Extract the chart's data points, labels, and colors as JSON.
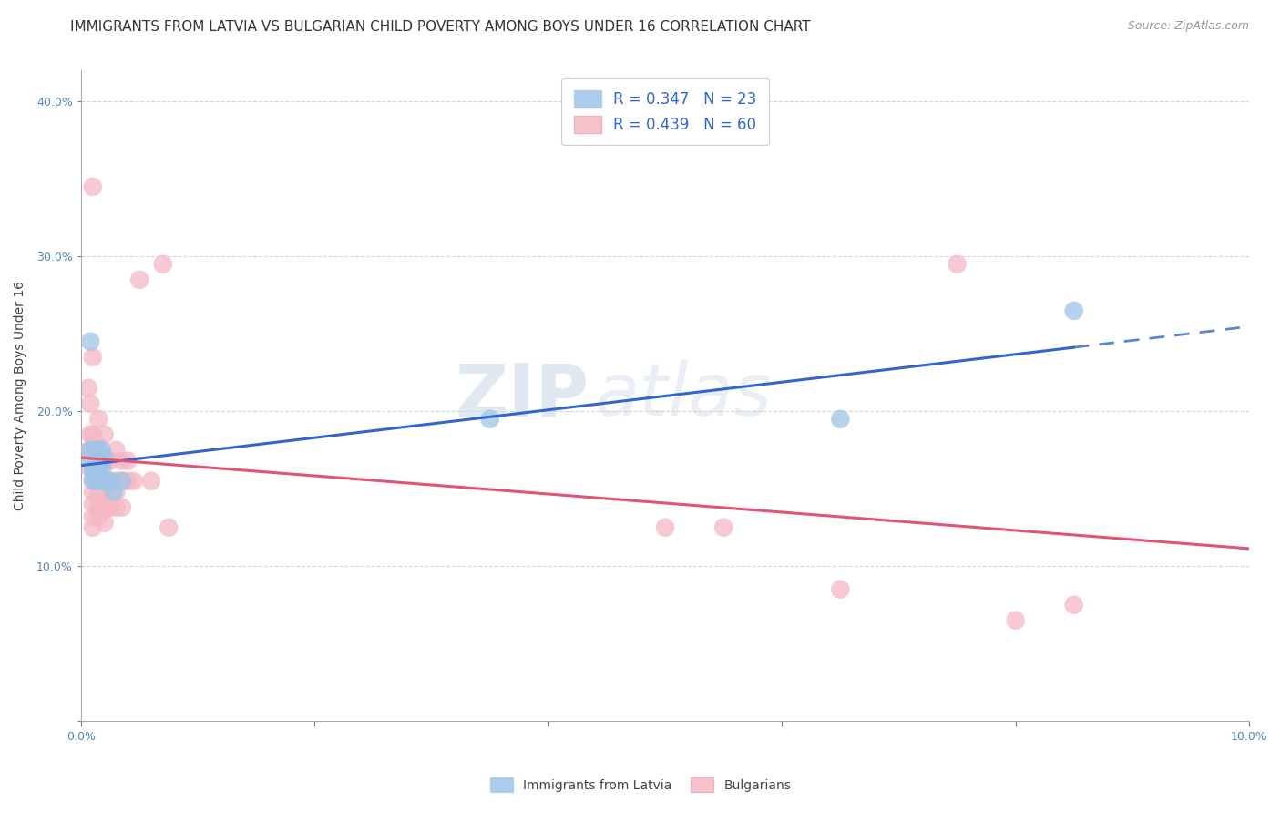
{
  "title": "IMMIGRANTS FROM LATVIA VS BULGARIAN CHILD POVERTY AMONG BOYS UNDER 16 CORRELATION CHART",
  "source": "Source: ZipAtlas.com",
  "ylabel": "Child Poverty Among Boys Under 16",
  "xlim": [
    0.0,
    0.1
  ],
  "ylim": [
    0.0,
    0.42
  ],
  "xticks": [
    0.0,
    0.02,
    0.04,
    0.06,
    0.08,
    0.1
  ],
  "yticks": [
    0.0,
    0.1,
    0.2,
    0.3,
    0.4
  ],
  "latvia_color": "#a0c4e8",
  "bulgaria_color": "#f5b8c4",
  "latvia_line_color": "#3366cc",
  "bulgaria_line_color": "#e05575",
  "latvia_R": 0.347,
  "latvia_N": 23,
  "bulgaria_R": 0.439,
  "bulgaria_N": 60,
  "background_color": "#ffffff",
  "grid_color": "#cccccc",
  "title_fontsize": 11,
  "axis_label_fontsize": 10,
  "tick_fontsize": 9,
  "legend_fontsize": 12,
  "source_fontsize": 9,
  "latvia_points": [
    [
      0.0008,
      0.245
    ],
    [
      0.0008,
      0.175
    ],
    [
      0.0009,
      0.168
    ],
    [
      0.001,
      0.162
    ],
    [
      0.001,
      0.156
    ],
    [
      0.0012,
      0.175
    ],
    [
      0.0012,
      0.163
    ],
    [
      0.0012,
      0.155
    ],
    [
      0.0013,
      0.168
    ],
    [
      0.0015,
      0.175
    ],
    [
      0.0015,
      0.163
    ],
    [
      0.0015,
      0.155
    ],
    [
      0.0018,
      0.175
    ],
    [
      0.0018,
      0.163
    ],
    [
      0.002,
      0.17
    ],
    [
      0.002,
      0.155
    ],
    [
      0.0022,
      0.155
    ],
    [
      0.0025,
      0.155
    ],
    [
      0.0028,
      0.148
    ],
    [
      0.0035,
      0.155
    ],
    [
      0.035,
      0.195
    ],
    [
      0.065,
      0.195
    ],
    [
      0.085,
      0.265
    ]
  ],
  "bulgaria_points": [
    [
      0.0004,
      0.165
    ],
    [
      0.0006,
      0.215
    ],
    [
      0.0007,
      0.175
    ],
    [
      0.0008,
      0.205
    ],
    [
      0.0008,
      0.185
    ],
    [
      0.0009,
      0.175
    ],
    [
      0.001,
      0.345
    ],
    [
      0.001,
      0.235
    ],
    [
      0.001,
      0.185
    ],
    [
      0.001,
      0.175
    ],
    [
      0.001,
      0.165
    ],
    [
      0.001,
      0.155
    ],
    [
      0.001,
      0.148
    ],
    [
      0.001,
      0.14
    ],
    [
      0.001,
      0.132
    ],
    [
      0.001,
      0.125
    ],
    [
      0.0012,
      0.18
    ],
    [
      0.0012,
      0.168
    ],
    [
      0.0012,
      0.155
    ],
    [
      0.0015,
      0.195
    ],
    [
      0.0015,
      0.175
    ],
    [
      0.0015,
      0.165
    ],
    [
      0.0015,
      0.155
    ],
    [
      0.0015,
      0.148
    ],
    [
      0.0015,
      0.14
    ],
    [
      0.0015,
      0.132
    ],
    [
      0.0018,
      0.168
    ],
    [
      0.0018,
      0.155
    ],
    [
      0.0018,
      0.145
    ],
    [
      0.002,
      0.185
    ],
    [
      0.002,
      0.168
    ],
    [
      0.002,
      0.155
    ],
    [
      0.002,
      0.148
    ],
    [
      0.002,
      0.138
    ],
    [
      0.002,
      0.128
    ],
    [
      0.0022,
      0.168
    ],
    [
      0.0022,
      0.155
    ],
    [
      0.0025,
      0.168
    ],
    [
      0.0025,
      0.155
    ],
    [
      0.0025,
      0.138
    ],
    [
      0.003,
      0.175
    ],
    [
      0.003,
      0.155
    ],
    [
      0.003,
      0.148
    ],
    [
      0.003,
      0.138
    ],
    [
      0.0035,
      0.168
    ],
    [
      0.0035,
      0.155
    ],
    [
      0.0035,
      0.138
    ],
    [
      0.004,
      0.168
    ],
    [
      0.004,
      0.155
    ],
    [
      0.0045,
      0.155
    ],
    [
      0.005,
      0.285
    ],
    [
      0.006,
      0.155
    ],
    [
      0.007,
      0.295
    ],
    [
      0.0075,
      0.125
    ],
    [
      0.05,
      0.125
    ],
    [
      0.055,
      0.125
    ],
    [
      0.065,
      0.085
    ],
    [
      0.075,
      0.295
    ],
    [
      0.08,
      0.065
    ],
    [
      0.085,
      0.075
    ]
  ]
}
